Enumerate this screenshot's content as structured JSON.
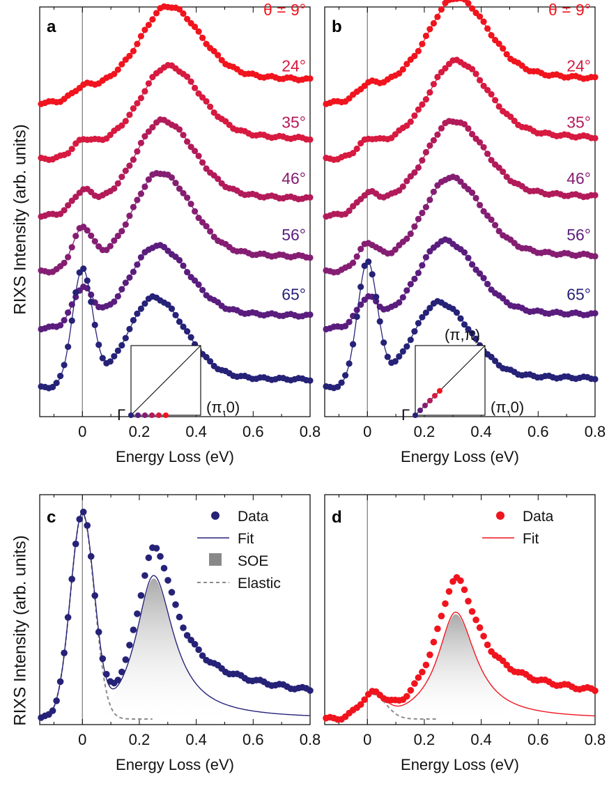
{
  "ylabel": "RIXS Intensity (arb. units)",
  "xlabel": "Energy Loss (eV)",
  "colors": {
    "red": "#f0141e",
    "c24": "#d71a40",
    "c35": "#b21b5a",
    "c46": "#851e72",
    "c56": "#5a1d7e",
    "navy": "#262277",
    "gray": "#909090"
  },
  "panels": {
    "a": {
      "letter": "a",
      "inset_gamma": "Γ",
      "inset_x": "(π,0)",
      "labels": [
        "θ = 9°",
        "24°",
        "35°",
        "46°",
        "56°",
        "65°"
      ]
    },
    "b": {
      "letter": "b",
      "inset_gamma": "Γ",
      "inset_x": "(π,0)",
      "inset_m": "(π,π)",
      "labels": [
        "θ = 9°",
        "24°",
        "35°",
        "46°",
        "56°",
        "65°"
      ]
    },
    "c": {
      "letter": "c",
      "legend": [
        "Data",
        "Fit",
        "SOE",
        "Elastic"
      ]
    },
    "d": {
      "letter": "d",
      "legend": [
        "Data",
        "Fit"
      ]
    }
  },
  "chart_data": [
    {
      "panel": "a",
      "type": "line",
      "xlabel": "Energy Loss (eV)",
      "ylabel": "RIXS Intensity (arb. units)",
      "xlim": [
        -0.15,
        0.8
      ],
      "xticks": [
        0,
        0.2,
        0.4,
        0.6,
        0.8
      ],
      "note": "stacked spectra, curves offset vertically; angle labels at right",
      "series": [
        {
          "name": "θ = 9°",
          "color": "#f0141e",
          "baseline": 4.3,
          "peak": 0.3,
          "peak_height": 1.0,
          "elastic": 0.15,
          "tail": 0.85
        },
        {
          "name": "24°",
          "color": "#d71a40",
          "baseline": 3.45,
          "peak": 0.3,
          "peak_height": 1.0,
          "elastic": 0.2,
          "tail": 0.75
        },
        {
          "name": "35°",
          "color": "#b21b5a",
          "baseline": 2.6,
          "peak": 0.28,
          "peak_height": 1.1,
          "elastic": 0.3,
          "tail": 0.62
        },
        {
          "name": "46°",
          "color": "#851e72",
          "baseline": 1.75,
          "peak": 0.27,
          "peak_height": 1.2,
          "elastic": 0.6,
          "tail": 0.55
        },
        {
          "name": "56°",
          "color": "#5a1d7e",
          "baseline": 0.9,
          "peak": 0.26,
          "peak_height": 1.0,
          "elastic": 0.55,
          "tail": 0.45
        },
        {
          "name": "65°",
          "color": "#262277",
          "baseline": 0.0,
          "peak": 0.25,
          "peak_height": 1.2,
          "elastic": 1.75,
          "tail": 0.3
        }
      ]
    },
    {
      "panel": "b",
      "type": "line",
      "xlabel": "Energy Loss (eV)",
      "xlim": [
        -0.15,
        0.8
      ],
      "xticks": [
        0,
        0.2,
        0.4,
        0.6,
        0.8
      ],
      "series": [
        {
          "name": "θ = 9°",
          "color": "#f0141e",
          "baseline": 4.3,
          "peak": 0.31,
          "peak_height": 1.1,
          "elastic": 0.18,
          "tail": 0.9
        },
        {
          "name": "24°",
          "color": "#d71a40",
          "baseline": 3.45,
          "peak": 0.31,
          "peak_height": 1.05,
          "elastic": 0.2,
          "tail": 0.8
        },
        {
          "name": "35°",
          "color": "#b21b5a",
          "baseline": 2.6,
          "peak": 0.3,
          "peak_height": 1.05,
          "elastic": 0.25,
          "tail": 0.7
        },
        {
          "name": "46°",
          "color": "#851e72",
          "baseline": 1.75,
          "peak": 0.29,
          "peak_height": 1.1,
          "elastic": 0.35,
          "tail": 0.6
        },
        {
          "name": "56°",
          "color": "#5a1d7e",
          "baseline": 0.9,
          "peak": 0.27,
          "peak_height": 1.05,
          "elastic": 0.4,
          "tail": 0.5
        },
        {
          "name": "65°",
          "color": "#262277",
          "baseline": 0.0,
          "peak": 0.25,
          "peak_height": 1.1,
          "elastic": 1.85,
          "tail": 0.35
        }
      ]
    },
    {
      "panel": "c",
      "type": "line",
      "xlabel": "Energy Loss (eV)",
      "ylabel": "RIXS Intensity (arb. units)",
      "xlim": [
        -0.15,
        0.8
      ],
      "ylim": [
        0,
        1.05
      ],
      "xticks": [
        0,
        0.2,
        0.4,
        0.6,
        0.8
      ],
      "data": {
        "color": "#262277",
        "elastic_height": 1.0,
        "elastic_width": 0.042,
        "peak": 0.25,
        "peak_height": 0.7,
        "tail": 0.18
      },
      "fit": {
        "color": "#262277"
      },
      "soe": {
        "center": 0.25,
        "height": 0.7
      },
      "elastic": {
        "center": 0.0,
        "height": 1.0
      }
    },
    {
      "panel": "d",
      "type": "line",
      "xlabel": "Energy Loss (eV)",
      "xlim": [
        -0.15,
        0.8
      ],
      "ylim": [
        0,
        1.05
      ],
      "xticks": [
        0,
        0.2,
        0.4,
        0.6,
        0.8
      ],
      "data": {
        "color": "#f0141e",
        "elastic_height": 0.12,
        "elastic_width": 0.045,
        "peak": 0.31,
        "peak_height": 0.52,
        "tail": 0.18
      },
      "fit": {
        "color": "#f0141e"
      },
      "soe": {
        "center": 0.31,
        "height": 0.52
      },
      "elastic": {
        "center": 0.02,
        "height": 0.12
      }
    }
  ]
}
